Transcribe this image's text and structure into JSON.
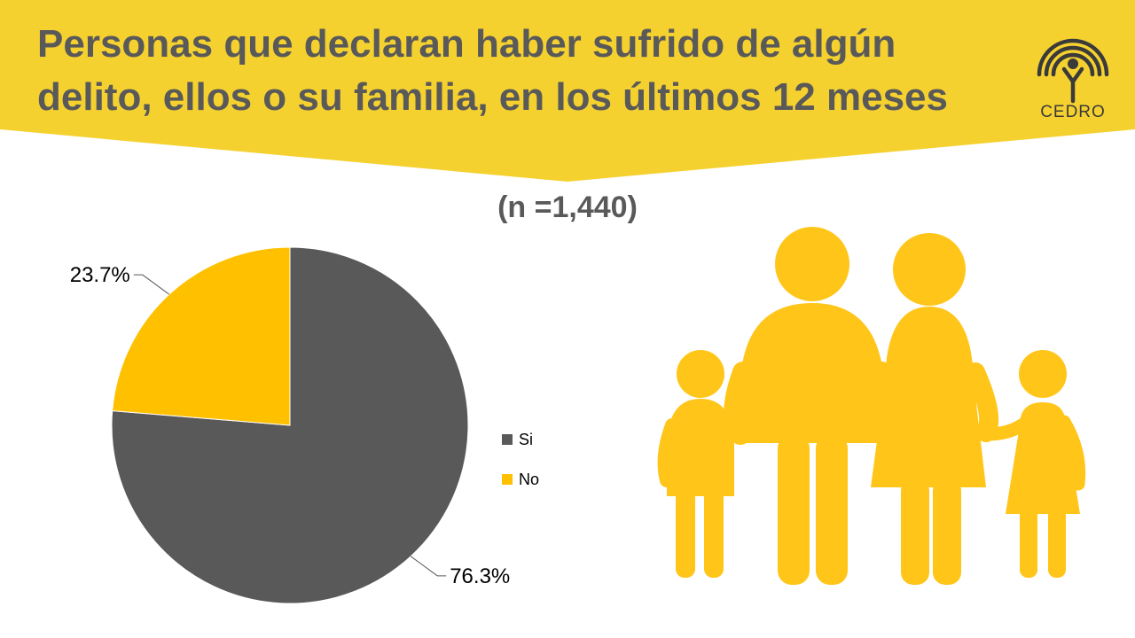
{
  "header": {
    "title_line1": "Personas que declaran haber sufrido de algún",
    "title_line2": "delito, ellos o su familia, en los últimos 12 meses",
    "logo_text": "CEDRO",
    "logo_icon": "cedro-logo-icon",
    "banner_color": "#F5D130"
  },
  "sample_label": "(n =1,440)",
  "illustration": {
    "icon": "family-icon",
    "color": "#FFC519"
  },
  "chart_data": {
    "type": "pie",
    "title": "",
    "slices": [
      {
        "name": "Si",
        "value": 76.3,
        "label": "76.3%",
        "color": "#595959"
      },
      {
        "name": "No",
        "value": 23.7,
        "label": "23.7%",
        "color": "#FFC000"
      }
    ],
    "legend": [
      "Si",
      "No"
    ],
    "legend_position": "right"
  }
}
